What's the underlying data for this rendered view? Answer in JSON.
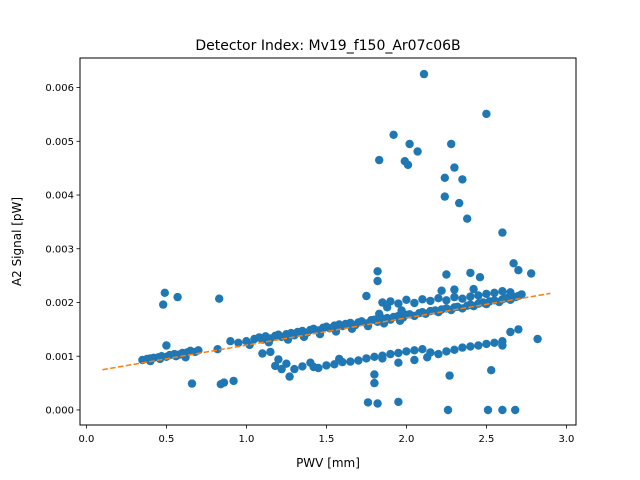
{
  "chart_data": {
    "type": "scatter",
    "title": "Detector Index: Mv19_f150_Ar07c06B",
    "xlabel": "PWV [mm]",
    "ylabel": "A2 Signal [pW]",
    "xlim": [
      -0.04,
      3.06
    ],
    "ylim": [
      -0.00028,
      0.00655
    ],
    "x_ticks": [
      0.0,
      0.5,
      1.0,
      1.5,
      2.0,
      2.5,
      3.0
    ],
    "x_tick_labels": [
      "0.0",
      "0.5",
      "1.0",
      "1.5",
      "2.0",
      "2.5",
      "3.0"
    ],
    "y_ticks": [
      0.0,
      0.001,
      0.002,
      0.003,
      0.004,
      0.005,
      0.006
    ],
    "y_tick_labels": [
      "0.000",
      "0.001",
      "0.002",
      "0.003",
      "0.004",
      "0.005",
      "0.006"
    ],
    "grid": false,
    "series": [
      {
        "name": "data",
        "kind": "points",
        "color": "#1f77b4",
        "points": [
          [
            0.35,
            0.00093
          ],
          [
            0.38,
            0.00095
          ],
          [
            0.4,
            0.00091
          ],
          [
            0.42,
            0.00097
          ],
          [
            0.45,
            0.00098
          ],
          [
            0.47,
            0.001
          ],
          [
            0.5,
            0.00099
          ],
          [
            0.52,
            0.00102
          ],
          [
            0.55,
            0.00104
          ],
          [
            0.58,
            0.00103
          ],
          [
            0.6,
            0.00106
          ],
          [
            0.63,
            0.00107
          ],
          [
            0.65,
            0.0011
          ],
          [
            0.68,
            0.00108
          ],
          [
            0.7,
            0.00111
          ],
          [
            0.46,
            0.00095
          ],
          [
            0.5,
            0.0012
          ],
          [
            0.56,
            0.001
          ],
          [
            0.62,
            0.00098
          ],
          [
            0.4,
            0.00096
          ],
          [
            0.48,
            0.00196
          ],
          [
            0.49,
            0.00218
          ],
          [
            0.57,
            0.0021
          ],
          [
            0.83,
            0.00207
          ],
          [
            0.82,
            0.00113
          ],
          [
            0.66,
            0.00049
          ],
          [
            0.84,
            0.00048
          ],
          [
            0.86,
            0.00051
          ],
          [
            0.92,
            0.00054
          ],
          [
            0.9,
            0.00128
          ],
          [
            0.95,
            0.00125
          ],
          [
            1.0,
            0.00128
          ],
          [
            1.05,
            0.00132
          ],
          [
            1.08,
            0.00135
          ],
          [
            1.1,
            0.00131
          ],
          [
            1.12,
            0.00137
          ],
          [
            1.15,
            0.00133
          ],
          [
            1.18,
            0.00138
          ],
          [
            1.2,
            0.0014
          ],
          [
            1.22,
            0.00136
          ],
          [
            1.25,
            0.00141
          ],
          [
            1.28,
            0.00143
          ],
          [
            1.3,
            0.00139
          ],
          [
            1.32,
            0.00145
          ],
          [
            1.35,
            0.00147
          ],
          [
            1.38,
            0.00144
          ],
          [
            1.4,
            0.00149
          ],
          [
            1.42,
            0.00151
          ],
          [
            1.45,
            0.00148
          ],
          [
            1.48,
            0.00153
          ],
          [
            1.5,
            0.00155
          ],
          [
            1.52,
            0.00152
          ],
          [
            1.55,
            0.00157
          ],
          [
            1.58,
            0.00159
          ],
          [
            1.6,
            0.00156
          ],
          [
            1.62,
            0.0016
          ],
          [
            1.65,
            0.00162
          ],
          [
            1.68,
            0.00158
          ],
          [
            1.7,
            0.00163
          ],
          [
            1.72,
            0.00165
          ],
          [
            1.75,
            0.00161
          ],
          [
            1.78,
            0.00167
          ],
          [
            1.8,
            0.00168
          ],
          [
            1.82,
            0.00164
          ],
          [
            1.85,
            0.0017
          ],
          [
            1.88,
            0.00171
          ],
          [
            1.9,
            0.00168
          ],
          [
            1.92,
            0.00173
          ],
          [
            1.95,
            0.00175
          ],
          [
            1.98,
            0.00172
          ],
          [
            2.0,
            0.00177
          ],
          [
            2.02,
            0.00178
          ],
          [
            2.05,
            0.00175
          ],
          [
            2.08,
            0.0018
          ],
          [
            2.1,
            0.00182
          ],
          [
            2.12,
            0.00179
          ],
          [
            2.15,
            0.00184
          ],
          [
            2.18,
            0.00185
          ],
          [
            2.2,
            0.00182
          ],
          [
            2.22,
            0.00187
          ],
          [
            2.25,
            0.00189
          ],
          [
            2.28,
            0.00186
          ],
          [
            2.3,
            0.00191
          ],
          [
            2.32,
            0.00192
          ],
          [
            2.35,
            0.00189
          ],
          [
            2.38,
            0.00194
          ],
          [
            2.4,
            0.00196
          ],
          [
            2.42,
            0.00193
          ],
          [
            2.45,
            0.00198
          ],
          [
            2.48,
            0.002
          ],
          [
            2.5,
            0.00197
          ],
          [
            2.52,
            0.00202
          ],
          [
            2.55,
            0.00204
          ],
          [
            2.58,
            0.00201
          ],
          [
            2.6,
            0.00206
          ],
          [
            2.62,
            0.00208
          ],
          [
            2.65,
            0.00205
          ],
          [
            2.68,
            0.0021
          ],
          [
            2.7,
            0.00212
          ],
          [
            2.72,
            0.00215
          ],
          [
            2.78,
            0.00254
          ],
          [
            2.67,
            0.00273
          ],
          [
            2.7,
            0.0026
          ],
          [
            1.02,
            0.00121
          ],
          [
            1.14,
            0.00126
          ],
          [
            1.26,
            0.00131
          ],
          [
            1.36,
            0.00136
          ],
          [
            1.46,
            0.00141
          ],
          [
            1.56,
            0.00146
          ],
          [
            1.66,
            0.00151
          ],
          [
            1.76,
            0.00156
          ],
          [
            1.86,
            0.00161
          ],
          [
            1.96,
            0.00166
          ],
          [
            1.85,
            0.002
          ],
          [
            1.9,
            0.00202
          ],
          [
            1.95,
            0.00198
          ],
          [
            2.0,
            0.00205
          ],
          [
            2.05,
            0.00199
          ],
          [
            2.1,
            0.00206
          ],
          [
            2.15,
            0.00203
          ],
          [
            2.2,
            0.00208
          ],
          [
            2.25,
            0.00204
          ],
          [
            2.3,
            0.0021
          ],
          [
            2.35,
            0.00207
          ],
          [
            2.4,
            0.00211
          ],
          [
            2.45,
            0.00213
          ],
          [
            2.5,
            0.00216
          ],
          [
            2.55,
            0.00218
          ],
          [
            2.6,
            0.00221
          ],
          [
            2.65,
            0.00219
          ],
          [
            2.22,
            0.00222
          ],
          [
            2.3,
            0.00224
          ],
          [
            2.42,
            0.00225
          ],
          [
            1.82,
            0.00258
          ],
          [
            1.82,
            0.0024
          ],
          [
            2.25,
            0.00252
          ],
          [
            2.4,
            0.00255
          ],
          [
            2.46,
            0.00247
          ],
          [
            1.75,
            0.00212
          ],
          [
            1.83,
            0.00179
          ],
          [
            1.88,
            0.00191
          ],
          [
            1.97,
            0.00185
          ],
          [
            1.1,
            0.00105
          ],
          [
            1.15,
            0.00108
          ],
          [
            1.2,
            0.00094
          ],
          [
            1.25,
            0.00086
          ],
          [
            1.3,
            0.00076
          ],
          [
            1.35,
            0.00081
          ],
          [
            1.4,
            0.00088
          ],
          [
            1.45,
            0.00078
          ],
          [
            1.5,
            0.00083
          ],
          [
            1.55,
            0.00085
          ],
          [
            1.6,
            0.00089
          ],
          [
            1.65,
            0.0009
          ],
          [
            1.7,
            0.00092
          ],
          [
            1.75,
            0.00096
          ],
          [
            1.8,
            0.00099
          ],
          [
            1.85,
            0.00101
          ],
          [
            1.9,
            0.00104
          ],
          [
            1.95,
            0.00106
          ],
          [
            2.0,
            0.00109
          ],
          [
            2.05,
            0.00111
          ],
          [
            2.1,
            0.00113
          ],
          [
            2.15,
            0.00107
          ],
          [
            2.2,
            0.00104
          ],
          [
            2.25,
            0.00109
          ],
          [
            2.3,
            0.00112
          ],
          [
            2.35,
            0.00116
          ],
          [
            2.4,
            0.00118
          ],
          [
            2.45,
            0.0012
          ],
          [
            2.5,
            0.00123
          ],
          [
            2.55,
            0.00125
          ],
          [
            2.6,
            0.00128
          ],
          [
            2.65,
            0.00145
          ],
          [
            2.7,
            0.0015
          ],
          [
            1.42,
            0.0008
          ],
          [
            1.58,
            0.00095
          ],
          [
            1.22,
            0.00076
          ],
          [
            1.27,
            0.00062
          ],
          [
            1.18,
            0.00082
          ],
          [
            2.27,
            0.00064
          ],
          [
            2.53,
            0.00074
          ],
          [
            2.82,
            0.00132
          ],
          [
            2.6,
            0.0012
          ],
          [
            1.8,
            0.00066
          ],
          [
            1.8,
            0.0005
          ],
          [
            1.85,
            0.00096
          ],
          [
            1.95,
            0.00088
          ],
          [
            2.05,
            0.00093
          ],
          [
            2.13,
            0.00098
          ],
          [
            1.83,
            0.00465
          ],
          [
            1.92,
            0.00512
          ],
          [
            1.99,
            0.00463
          ],
          [
            2.01,
            0.00456
          ],
          [
            2.02,
            0.00495
          ],
          [
            2.07,
            0.00481
          ],
          [
            2.11,
            0.00625
          ],
          [
            2.24,
            0.00432
          ],
          [
            2.24,
            0.00397
          ],
          [
            2.28,
            0.00495
          ],
          [
            2.3,
            0.00451
          ],
          [
            2.33,
            0.00385
          ],
          [
            2.35,
            0.00429
          ],
          [
            2.38,
            0.00356
          ],
          [
            2.5,
            0.00551
          ],
          [
            2.6,
            0.0033
          ],
          [
            1.76,
            0.00014
          ],
          [
            1.82,
            0.00012
          ],
          [
            1.95,
            0.00015
          ],
          [
            2.26,
            0.0
          ],
          [
            2.51,
            0.0
          ],
          [
            2.6,
            0.0
          ],
          [
            2.68,
            0.0
          ]
        ]
      },
      {
        "name": "fit",
        "kind": "line",
        "style": "dashed",
        "color": "#ff7f0e",
        "points": [
          [
            0.1,
            0.00075
          ],
          [
            2.9,
            0.00217
          ]
        ]
      }
    ]
  }
}
